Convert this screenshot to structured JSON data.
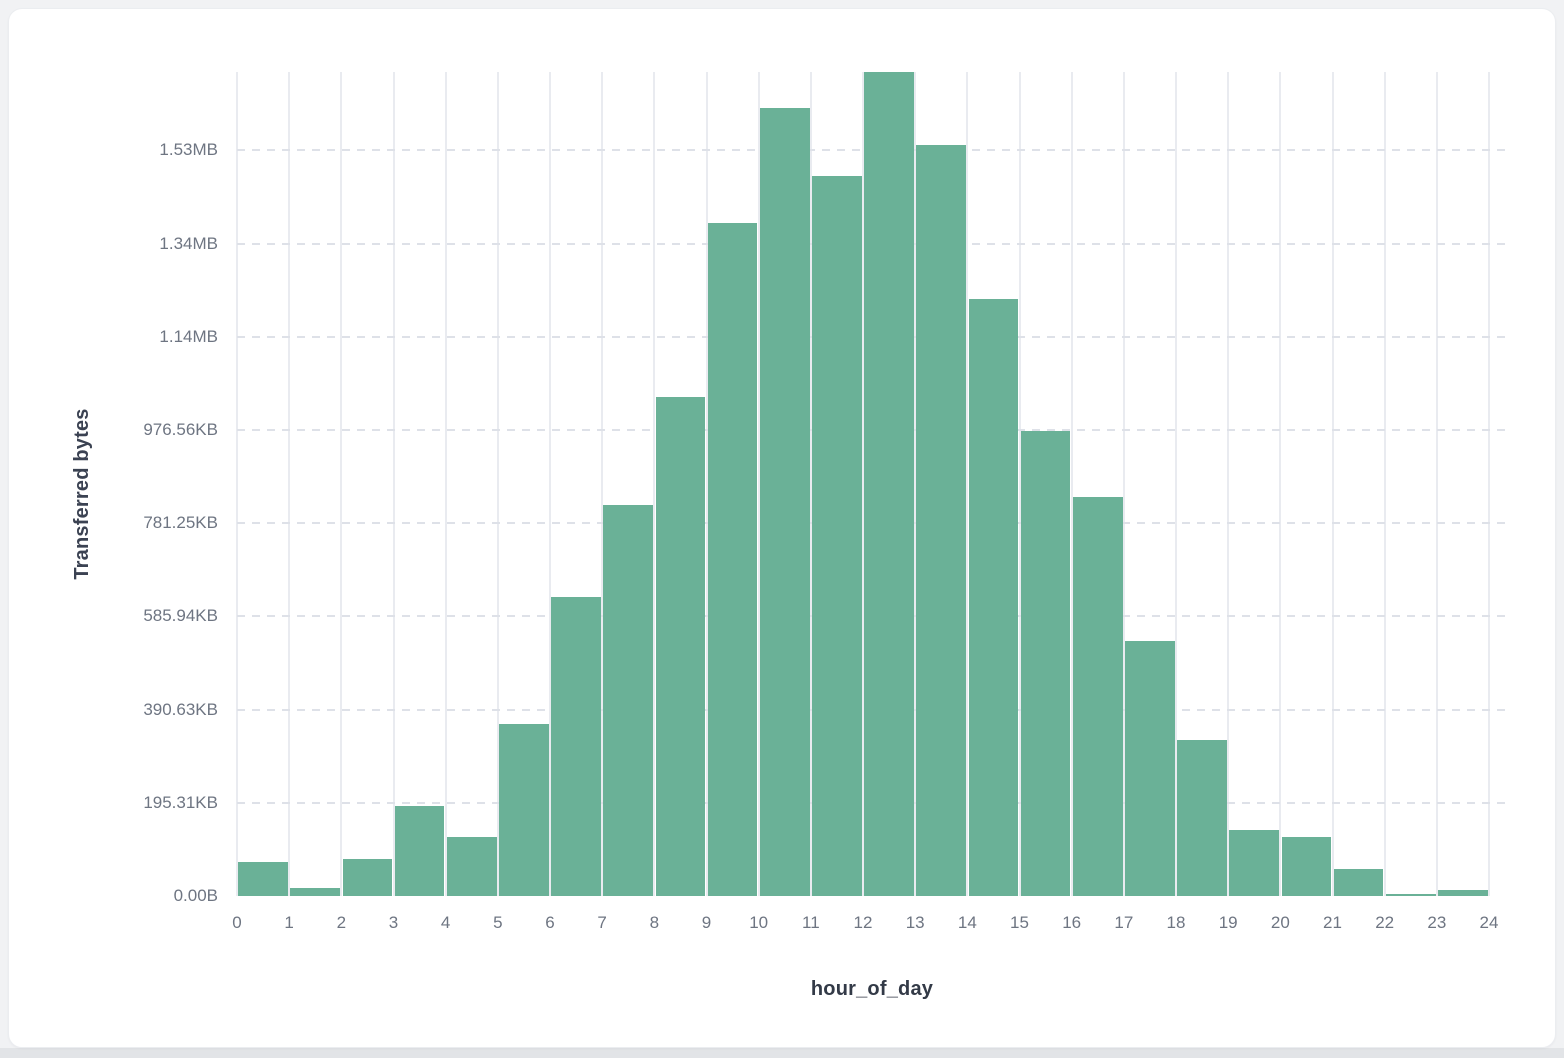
{
  "chart_data": {
    "type": "bar",
    "subtype": "histogram",
    "title": "",
    "xlabel": "hour_of_day",
    "ylabel": "Transferred bytes",
    "hours": [
      0,
      1,
      2,
      3,
      4,
      5,
      6,
      7,
      8,
      9,
      10,
      11,
      12,
      13,
      14,
      15,
      16,
      17,
      18,
      19,
      20,
      21,
      22,
      23
    ],
    "values_bytes": [
      74000,
      16500,
      79000,
      194000,
      126000,
      370000,
      642000,
      838000,
      1070000,
      1443000,
      1690000,
      1545000,
      1768000,
      1612000,
      1281000,
      998000,
      857000,
      547000,
      334000,
      141000,
      126000,
      57000,
      4000,
      13000
    ],
    "ylim_bytes": [
      0,
      1768000
    ],
    "y_ticks": [
      {
        "label": "0.00B",
        "bytes": 0
      },
      {
        "label": "195.31KB",
        "bytes": 200000
      },
      {
        "label": "390.63KB",
        "bytes": 400000
      },
      {
        "label": "585.94KB",
        "bytes": 600000
      },
      {
        "label": "781.25KB",
        "bytes": 800000
      },
      {
        "label": "976.56KB",
        "bytes": 1000000
      },
      {
        "label": "1.14MB",
        "bytes": 1200000
      },
      {
        "label": "1.34MB",
        "bytes": 1400000
      },
      {
        "label": "1.53MB",
        "bytes": 1600000
      }
    ],
    "x_ticks": [
      "0",
      "1",
      "2",
      "3",
      "4",
      "5",
      "6",
      "7",
      "8",
      "9",
      "10",
      "11",
      "12",
      "13",
      "14",
      "15",
      "16",
      "17",
      "18",
      "19",
      "20",
      "21",
      "22",
      "23",
      "24"
    ],
    "legend": null,
    "grid": {
      "vertical": "solid",
      "horizontal": "dashed"
    },
    "bar_color": "#6ab197",
    "bar_gap_color": "#ffffff",
    "vgrid_color": "#e9ebf0",
    "hgrid_color": "#dee1e8",
    "tick_label_color": "#6e7582",
    "axis_title_color": "#3b4252"
  }
}
